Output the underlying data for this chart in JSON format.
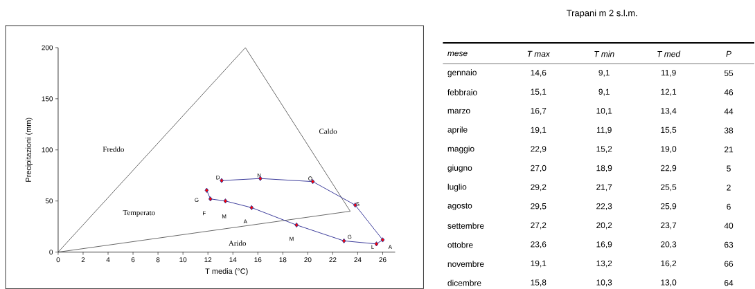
{
  "chart_data": [
    {
      "type": "line",
      "xlabel": "T  media (°C)",
      "ylabel": "Precipitazioni (mm)",
      "xlim": [
        0,
        27
      ],
      "xticks": [
        0,
        2,
        4,
        6,
        8,
        10,
        12,
        14,
        16,
        18,
        20,
        22,
        24,
        26
      ],
      "ylim": [
        0,
        200
      ],
      "yticks": [
        0,
        50,
        100,
        150,
        200
      ],
      "series": [
        {
          "color": "#000000",
          "marker": "none",
          "x": [
            0,
            15,
            23.4
          ],
          "values": [
            0,
            200,
            40
          ]
        },
        {
          "color": "#000000",
          "marker": "none",
          "x": [
            0,
            23.4
          ],
          "values": [
            0,
            40
          ]
        },
        {
          "color": "#3b3b9a",
          "marker": "diamond",
          "x": [
            11.9,
            12.2,
            13.4,
            15.5,
            19.1,
            22.9,
            25.5,
            26.0,
            23.8,
            20.4,
            16.2,
            13.1
          ],
          "values": [
            60.5,
            52,
            50,
            43.5,
            26.5,
            11,
            8,
            12,
            46,
            69,
            72,
            70
          ]
        }
      ],
      "annotations": [
        "Freddo",
        "Caldo",
        "Temperato",
        "Arido",
        {
          "text": "G",
          "x": 11.9,
          "y": 60.5
        },
        {
          "text": "F",
          "x": 12.2,
          "y": 52
        },
        {
          "text": "M",
          "x": 13.4,
          "y": 50
        },
        {
          "text": "A",
          "x": 15.5,
          "y": 43.5
        },
        {
          "text": "M",
          "x": 19.1,
          "y": 26.5
        },
        {
          "text": "G",
          "x": 22.9,
          "y": 11
        },
        {
          "text": "L",
          "x": 25.5,
          "y": 8
        },
        {
          "text": "A",
          "x": 26.0,
          "y": 12
        },
        {
          "text": "S",
          "x": 23.8,
          "y": 46
        },
        {
          "text": "O",
          "x": 20.4,
          "y": 69
        },
        {
          "text": "N",
          "x": 16.2,
          "y": 72
        },
        {
          "text": "D",
          "x": 13.1,
          "y": 70
        }
      ]
    },
    {
      "type": "other",
      "title": "Trapani   m 2 s.l.m.",
      "legend_title": "mese",
      "categories": [
        "gennaio",
        "febbraio",
        "marzo",
        "aprile",
        "maggio",
        "giugno",
        "luglio",
        "agosto",
        "settembre",
        "ottobre",
        "novembre",
        "dicembre"
      ],
      "series": [
        {
          "name": "T max",
          "values": [
            14.6,
            15.1,
            16.7,
            19.1,
            22.9,
            27.0,
            29.2,
            29.5,
            27.2,
            23.6,
            19.1,
            15.8
          ],
          "value_labels": [
            "14,6",
            "15,1",
            "16,7",
            "19,1",
            "22,9",
            "27,0",
            "29,2",
            "29,5",
            "27,2",
            "23,6",
            "19,1",
            "15,8"
          ]
        },
        {
          "name": "T min",
          "values": [
            9.1,
            9.1,
            10.1,
            11.9,
            15.2,
            18.9,
            21.7,
            22.3,
            20.2,
            16.9,
            13.2,
            10.3
          ],
          "value_labels": [
            "9,1",
            "9,1",
            "10,1",
            "11,9",
            "15,2",
            "18,9",
            "21,7",
            "22,3",
            "20,2",
            "16,9",
            "13,2",
            "10,3"
          ]
        },
        {
          "name": "T med",
          "values": [
            11.9,
            12.1,
            13.4,
            15.5,
            19.0,
            22.9,
            25.5,
            25.9,
            23.7,
            20.3,
            16.2,
            13.0
          ],
          "value_labels": [
            "11,9",
            "12,1",
            "13,4",
            "15,5",
            "19,0",
            "22,9",
            "25,5",
            "25,9",
            "23,7",
            "20,3",
            "16,2",
            "13,0"
          ]
        },
        {
          "name": "P",
          "values": [
            55,
            46,
            44,
            38,
            21,
            5,
            2,
            6,
            40,
            63,
            66,
            64
          ],
          "value_labels": [
            "55",
            "46",
            "44",
            "38",
            "21",
            "5",
            "2",
            "6",
            "40",
            "63",
            "66",
            "64"
          ]
        }
      ]
    }
  ]
}
